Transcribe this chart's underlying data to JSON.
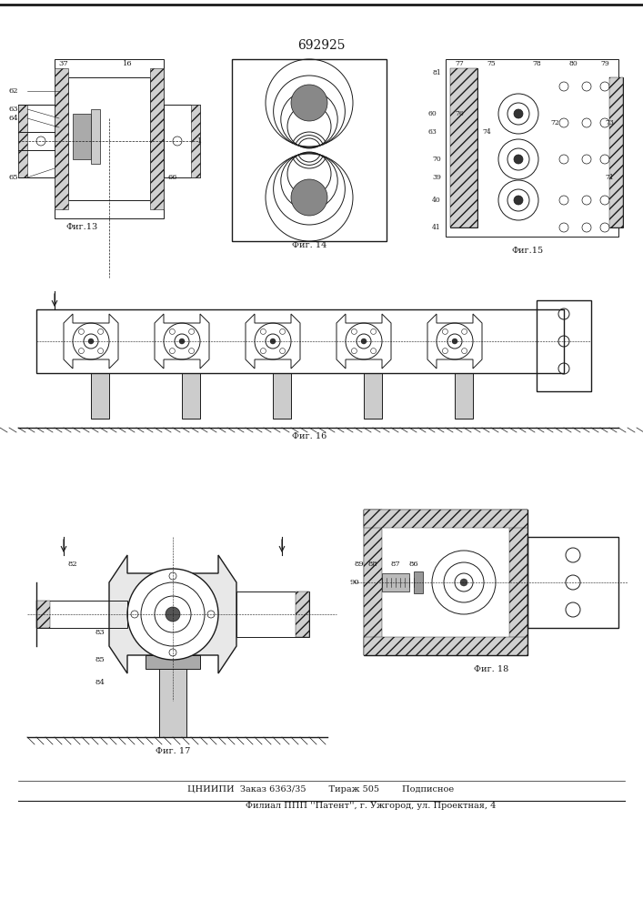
{
  "title": "692925",
  "background_color": "#ffffff",
  "line_color": "#1a1a1a",
  "fig_width": 7.07,
  "fig_height": 10.0,
  "footer_line1": "ЦНИИПИ  Заказ 6363/35        Тираж 505        Подписное",
  "footer_line2": "Филиал ППП ''Патент'', г. Ужгород, ул. Проектная, 4",
  "fig13_label": "Фиг.13",
  "fig14_label": "Фиг. 14",
  "fig15_label": "Фиг.15",
  "fig16_label": "Фиг. 16",
  "fig17_label": "Фиг. 17",
  "fig18_label": "Фиг. 18"
}
